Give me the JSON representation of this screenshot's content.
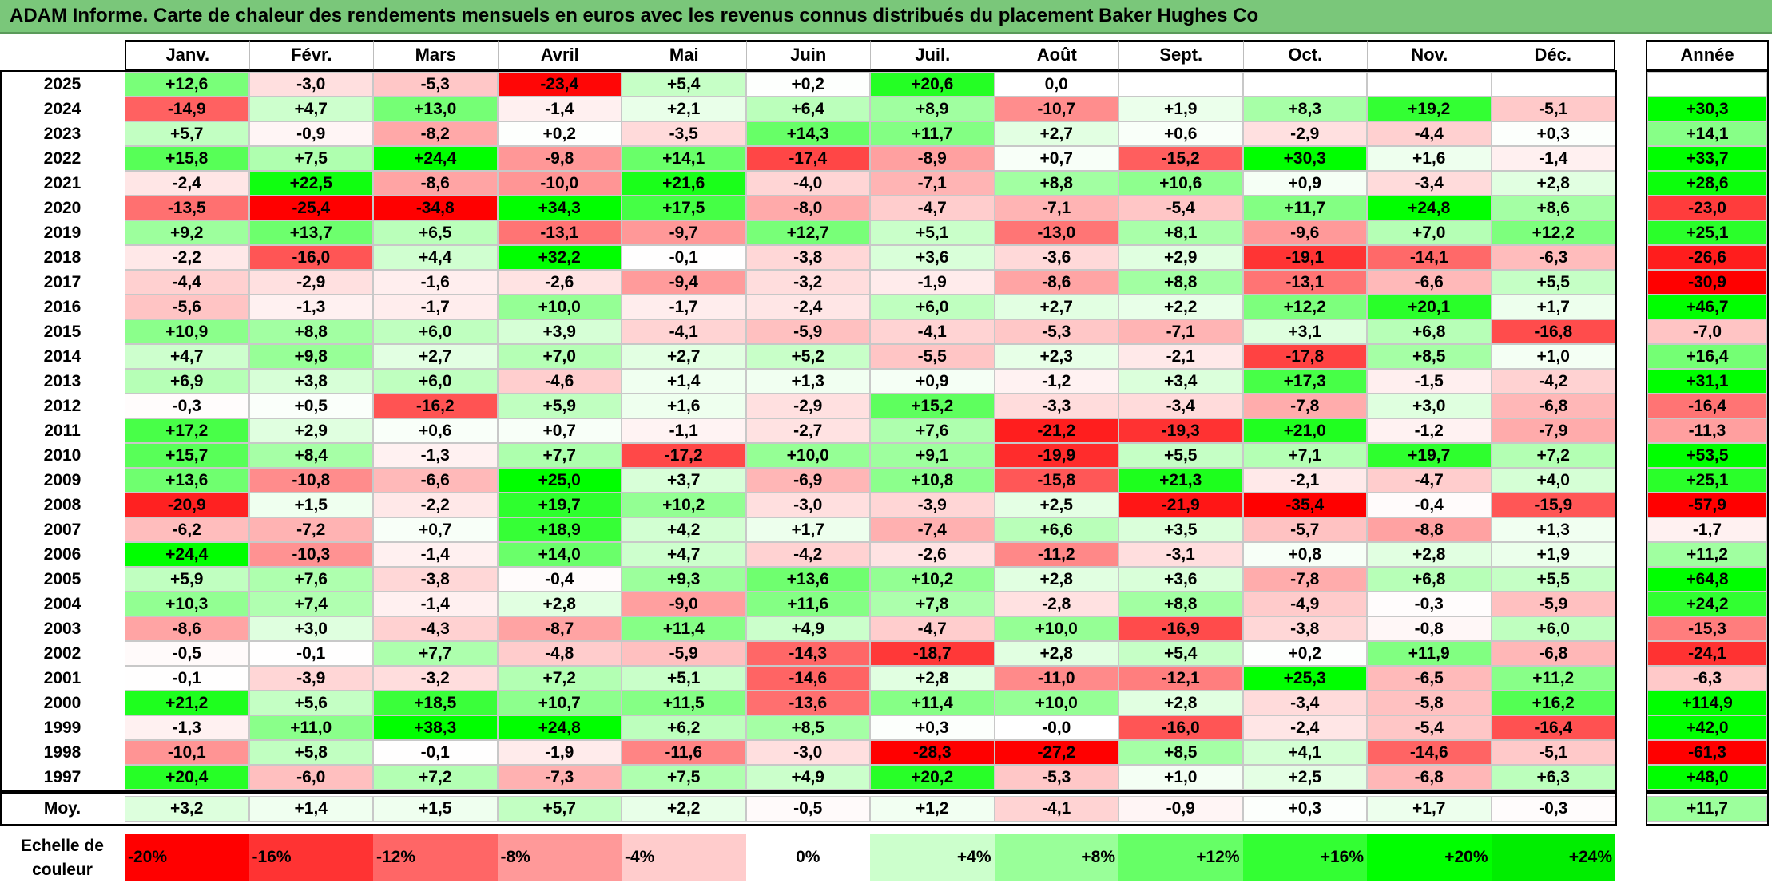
{
  "title": "ADAM Informe. Carte de chaleur des rendements mensuels en euros avec les revenus connus distribués du placement Baker Hughes Co",
  "chart_data": {
    "type": "heatmap",
    "columns": [
      "Janv.",
      "Févr.",
      "Mars",
      "Avril",
      "Mai",
      "Juin",
      "Juil.",
      "Août",
      "Sept.",
      "Oct.",
      "Nov.",
      "Déc."
    ],
    "year_column": "Année",
    "rows": [
      {
        "year": "2025",
        "values": [
          "+12,6",
          "-3,0",
          "-5,3",
          "-23,4",
          "+5,4",
          "+0,2",
          "+20,6",
          "0,0",
          "",
          "",
          "",
          ""
        ],
        "annual": ""
      },
      {
        "year": "2024",
        "values": [
          "-14,9",
          "+4,7",
          "+13,0",
          "-1,4",
          "+2,1",
          "+6,4",
          "+8,9",
          "-10,7",
          "+1,9",
          "+8,3",
          "+19,2",
          "-5,1"
        ],
        "annual": "+30,3"
      },
      {
        "year": "2023",
        "values": [
          "+5,7",
          "-0,9",
          "-8,2",
          "+0,2",
          "-3,5",
          "+14,3",
          "+11,7",
          "+2,7",
          "+0,6",
          "-2,9",
          "-4,4",
          "+0,3"
        ],
        "annual": "+14,1"
      },
      {
        "year": "2022",
        "values": [
          "+15,8",
          "+7,5",
          "+24,4",
          "-9,8",
          "+14,1",
          "-17,4",
          "-8,9",
          "+0,7",
          "-15,2",
          "+30,3",
          "+1,6",
          "-1,4"
        ],
        "annual": "+33,7"
      },
      {
        "year": "2021",
        "values": [
          "-2,4",
          "+22,5",
          "-8,6",
          "-10,0",
          "+21,6",
          "-4,0",
          "-7,1",
          "+8,8",
          "+10,6",
          "+0,9",
          "-3,4",
          "+2,8"
        ],
        "annual": "+28,6"
      },
      {
        "year": "2020",
        "values": [
          "-13,5",
          "-25,4",
          "-34,8",
          "+34,3",
          "+17,5",
          "-8,0",
          "-4,7",
          "-7,1",
          "-5,4",
          "+11,7",
          "+24,8",
          "+8,6"
        ],
        "annual": "-23,0"
      },
      {
        "year": "2019",
        "values": [
          "+9,2",
          "+13,7",
          "+6,5",
          "-13,1",
          "-9,7",
          "+12,7",
          "+5,1",
          "-13,0",
          "+8,1",
          "-9,6",
          "+7,0",
          "+12,2"
        ],
        "annual": "+25,1"
      },
      {
        "year": "2018",
        "values": [
          "-2,2",
          "-16,0",
          "+4,4",
          "+32,2",
          "-0,1",
          "-3,8",
          "+3,6",
          "-3,6",
          "+2,9",
          "-19,1",
          "-14,1",
          "-6,3"
        ],
        "annual": "-26,6"
      },
      {
        "year": "2017",
        "values": [
          "-4,4",
          "-2,9",
          "-1,6",
          "-2,6",
          "-9,4",
          "-3,2",
          "-1,9",
          "-8,6",
          "+8,8",
          "-13,1",
          "-6,6",
          "+5,5"
        ],
        "annual": "-30,9"
      },
      {
        "year": "2016",
        "values": [
          "-5,6",
          "-1,3",
          "-1,7",
          "+10,0",
          "-1,7",
          "-2,4",
          "+6,0",
          "+2,7",
          "+2,2",
          "+12,2",
          "+20,1",
          "+1,7"
        ],
        "annual": "+46,7"
      },
      {
        "year": "2015",
        "values": [
          "+10,9",
          "+8,8",
          "+6,0",
          "+3,9",
          "-4,1",
          "-5,9",
          "-4,1",
          "-5,3",
          "-7,1",
          "+3,1",
          "+6,8",
          "-16,8"
        ],
        "annual": "-7,0"
      },
      {
        "year": "2014",
        "values": [
          "+4,7",
          "+9,8",
          "+2,7",
          "+7,0",
          "+2,7",
          "+5,2",
          "-5,5",
          "+2,3",
          "-2,1",
          "-17,8",
          "+8,5",
          "+1,0"
        ],
        "annual": "+16,4"
      },
      {
        "year": "2013",
        "values": [
          "+6,9",
          "+3,8",
          "+6,0",
          "-4,6",
          "+1,4",
          "+1,3",
          "+0,9",
          "-1,2",
          "+3,4",
          "+17,3",
          "-1,5",
          "-4,2"
        ],
        "annual": "+31,1"
      },
      {
        "year": "2012",
        "values": [
          "-0,3",
          "+0,5",
          "-16,2",
          "+5,9",
          "+1,6",
          "-2,9",
          "+15,2",
          "-3,3",
          "-3,4",
          "-7,8",
          "+3,0",
          "-6,8"
        ],
        "annual": "-16,4"
      },
      {
        "year": "2011",
        "values": [
          "+17,2",
          "+2,9",
          "+0,6",
          "+0,7",
          "-1,1",
          "-2,7",
          "+7,6",
          "-21,2",
          "-19,3",
          "+21,0",
          "-1,2",
          "-7,9"
        ],
        "annual": "-11,3"
      },
      {
        "year": "2010",
        "values": [
          "+15,7",
          "+8,4",
          "-1,3",
          "+7,7",
          "-17,2",
          "+10,0",
          "+9,1",
          "-19,9",
          "+5,5",
          "+7,1",
          "+19,7",
          "+7,2"
        ],
        "annual": "+53,5"
      },
      {
        "year": "2009",
        "values": [
          "+13,6",
          "-10,8",
          "-6,6",
          "+25,0",
          "+3,7",
          "-6,9",
          "+10,8",
          "-15,8",
          "+21,3",
          "-2,1",
          "-4,7",
          "+4,0"
        ],
        "annual": "+25,1"
      },
      {
        "year": "2008",
        "values": [
          "-20,9",
          "+1,5",
          "-2,2",
          "+19,7",
          "+10,2",
          "-3,0",
          "-3,9",
          "+2,5",
          "-21,9",
          "-35,4",
          "-0,4",
          "-15,9"
        ],
        "annual": "-57,9"
      },
      {
        "year": "2007",
        "values": [
          "-6,2",
          "-7,2",
          "+0,7",
          "+18,9",
          "+4,2",
          "+1,7",
          "-7,4",
          "+6,6",
          "+3,5",
          "-5,7",
          "-8,8",
          "+1,3"
        ],
        "annual": "-1,7"
      },
      {
        "year": "2006",
        "values": [
          "+24,4",
          "-10,3",
          "-1,4",
          "+14,0",
          "+4,7",
          "-4,2",
          "-2,6",
          "-11,2",
          "-3,1",
          "+0,8",
          "+2,8",
          "+1,9"
        ],
        "annual": "+11,2"
      },
      {
        "year": "2005",
        "values": [
          "+5,9",
          "+7,6",
          "-3,8",
          "-0,4",
          "+9,3",
          "+13,6",
          "+10,2",
          "+2,8",
          "+3,6",
          "-7,8",
          "+6,8",
          "+5,5"
        ],
        "annual": "+64,8"
      },
      {
        "year": "2004",
        "values": [
          "+10,3",
          "+7,4",
          "-1,4",
          "+2,8",
          "-9,0",
          "+11,6",
          "+7,8",
          "-2,8",
          "+8,8",
          "-4,9",
          "-0,3",
          "-5,9"
        ],
        "annual": "+24,2"
      },
      {
        "year": "2003",
        "values": [
          "-8,6",
          "+3,0",
          "-4,3",
          "-8,7",
          "+11,4",
          "+4,9",
          "-4,7",
          "+10,0",
          "-16,9",
          "-3,8",
          "-0,8",
          "+6,0"
        ],
        "annual": "-15,3"
      },
      {
        "year": "2002",
        "values": [
          "-0,5",
          "-0,1",
          "+7,7",
          "-4,8",
          "-5,9",
          "-14,3",
          "-18,7",
          "+2,8",
          "+5,4",
          "+0,2",
          "+11,9",
          "-6,8"
        ],
        "annual": "-24,1"
      },
      {
        "year": "2001",
        "values": [
          "-0,1",
          "-3,9",
          "-3,2",
          "+7,2",
          "+5,1",
          "-14,6",
          "+2,8",
          "-11,0",
          "-12,1",
          "+25,3",
          "-6,5",
          "+11,2"
        ],
        "annual": "-6,3"
      },
      {
        "year": "2000",
        "values": [
          "+21,2",
          "+5,6",
          "+18,5",
          "+10,7",
          "+11,5",
          "-13,6",
          "+11,4",
          "+10,0",
          "+2,8",
          "-3,4",
          "-5,8",
          "+16,2"
        ],
        "annual": "+114,9"
      },
      {
        "year": "1999",
        "values": [
          "-1,3",
          "+11,0",
          "+38,3",
          "+24,8",
          "+6,2",
          "+8,5",
          "+0,3",
          "-0,0",
          "-16,0",
          "-2,4",
          "-5,4",
          "-16,4"
        ],
        "annual": "+42,0"
      },
      {
        "year": "1998",
        "values": [
          "-10,1",
          "+5,8",
          "-0,1",
          "-1,9",
          "-11,6",
          "-3,0",
          "-28,3",
          "-27,2",
          "+8,5",
          "+4,1",
          "-14,6",
          "-5,1"
        ],
        "annual": "-61,3"
      },
      {
        "year": "1997",
        "values": [
          "+20,4",
          "-6,0",
          "+7,2",
          "-7,3",
          "+7,5",
          "+4,9",
          "+20,2",
          "-5,3",
          "+1,0",
          "+2,5",
          "-6,8",
          "+6,3"
        ],
        "annual": "+48,0"
      }
    ],
    "average": {
      "label": "Moy.",
      "values": [
        "+3,2",
        "+1,4",
        "+1,5",
        "+5,7",
        "+2,2",
        "-0,5",
        "+1,2",
        "-4,1",
        "-0,9",
        "+0,3",
        "+1,7",
        "-0,3"
      ],
      "annual": "+11,7"
    },
    "color_scale": {
      "label_line1": "Echelle de",
      "label_line2": "couleur",
      "stops": [
        {
          "label": "-20%",
          "value": -20,
          "color": "#ff0000"
        },
        {
          "label": "-16%",
          "value": -16,
          "color": "#ff3333"
        },
        {
          "label": "-12%",
          "value": -12,
          "color": "#ff6666"
        },
        {
          "label": "-8%",
          "value": -8,
          "color": "#ff9999"
        },
        {
          "label": "-4%",
          "value": -4,
          "color": "#ffcccc"
        },
        {
          "label": "0%",
          "value": 0,
          "color": "#ffffff"
        },
        {
          "label": "+4%",
          "value": 4,
          "color": "#ccffcc"
        },
        {
          "label": "+8%",
          "value": 8,
          "color": "#99ff99"
        },
        {
          "label": "+12%",
          "value": 12,
          "color": "#66ff66"
        },
        {
          "label": "+16%",
          "value": 16,
          "color": "#33ff33"
        },
        {
          "label": "+20%",
          "value": 20,
          "color": "#00ff00"
        },
        {
          "label": "+24%",
          "value": 24,
          "color": "#00ee00"
        }
      ]
    }
  }
}
